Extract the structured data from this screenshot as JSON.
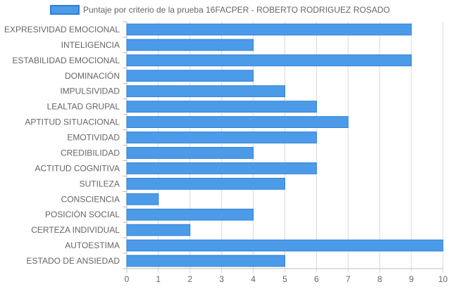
{
  "chart_data": {
    "type": "bar",
    "orientation": "horizontal",
    "categories": [
      "EXPRESIVIDAD EMOCIONAL",
      "INTELIGENCIA",
      "ESTABILIDAD EMOCIONAL",
      "DOMINACIÓN",
      "IMPULSIVIDAD",
      "LEALTAD GRUPAL",
      "APTITUD SITUACIONAL",
      "EMOTIVIDAD",
      "CREDIBILIDAD",
      "ACTITUD COGNITIVA",
      "SUTILEZA",
      "CONSCIENCIA",
      "POSICIÓN SOCIAL",
      "CERTEZA INDIVIDUAL",
      "AUTOESTIMA",
      "ESTADO DE ANSIEDAD"
    ],
    "series": [
      {
        "name": "Puntaje por criterio de la prueba 16FACPER - ROBERTO RODRIGUEZ ROSADO",
        "values": [
          9,
          4,
          9,
          4,
          5,
          6,
          7,
          6,
          4,
          6,
          5,
          1,
          4,
          2,
          10,
          5
        ],
        "color": "#4c9be8"
      }
    ],
    "xlim": [
      0,
      10
    ],
    "xticks": [
      "0",
      "1",
      "2",
      "3",
      "4",
      "5",
      "6",
      "7",
      "8",
      "9",
      "10"
    ],
    "grid": true,
    "legend_position": "top"
  },
  "colors": {
    "bar_fill": "#4c9be8",
    "bar_stroke": "#2f7fd6",
    "grid": "#d9d9d9",
    "axis": "#bdbdbd",
    "text": "#666666"
  }
}
